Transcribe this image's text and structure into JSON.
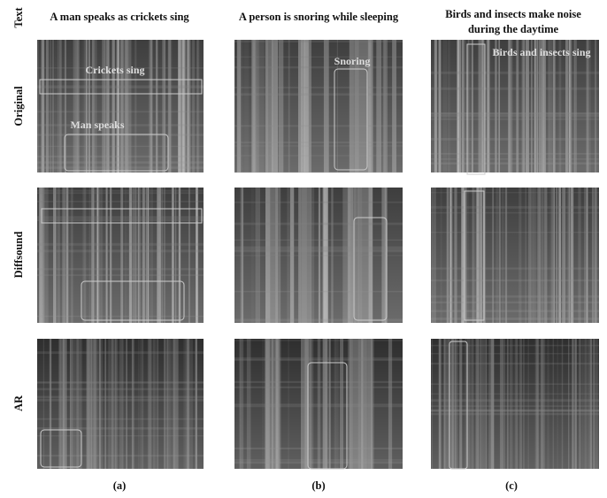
{
  "header": {
    "row_label": "Text"
  },
  "columns": [
    {
      "caption_lines": [
        "A man speaks as crickets sing"
      ],
      "label": "(a)"
    },
    {
      "caption_lines": [
        "A person is snoring while sleeping"
      ],
      "label": "(b)"
    },
    {
      "caption_lines": [
        "Birds and insects make noise",
        "during the daytime"
      ],
      "label": "(c)"
    }
  ],
  "rows": [
    {
      "label": "Original"
    },
    {
      "label": "Diffsound"
    },
    {
      "label": "AR"
    }
  ],
  "annotations": [
    {
      "text": "Crickets sing"
    },
    {
      "text": "Man speaks"
    },
    {
      "text": "Snoring"
    },
    {
      "text": "Birds and insects sing"
    }
  ]
}
